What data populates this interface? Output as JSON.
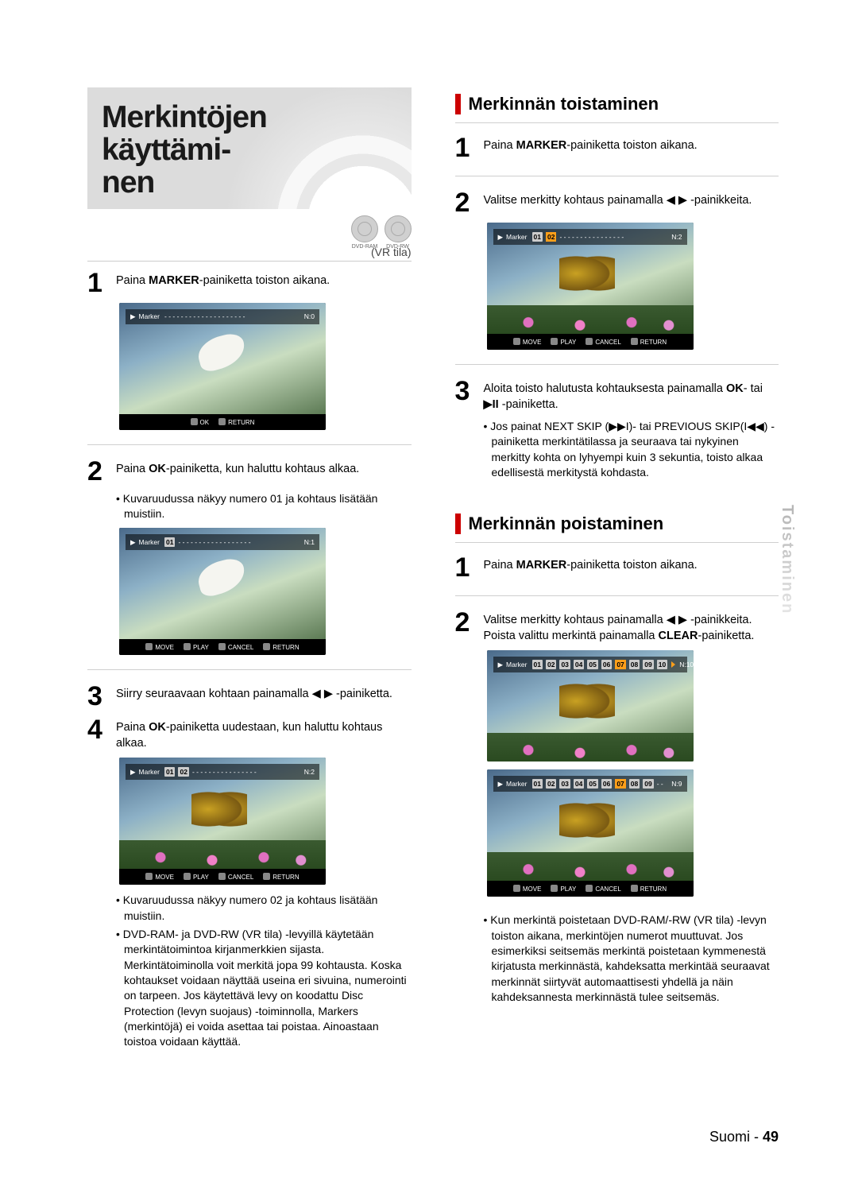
{
  "title": "Merkintöjen käyttämi-\nnen",
  "vr_mode": "(VR tila)",
  "side_tab": "Toistaminen",
  "footer_lang": "Suomi -",
  "footer_page": "49",
  "left": {
    "s1": "Paina MARKER-painiketta toiston aikana.",
    "s2": "Paina OK-painiketta, kun haluttu kohtaus alkaa.",
    "s2b": "Kuvaruudussa näkyy numero 01 ja kohtaus lisätään muistiin.",
    "s3": "Siirry seuraavaan kohtaan painamalla ◀ ▶ -painiketta.",
    "s4": "Paina OK-painiketta uudestaan, kun haluttu kohtaus alkaa.",
    "s4b1": "Kuvaruudussa näkyy numero 02 ja kohtaus lisätään muistiin.",
    "s4b2": "DVD-RAM- ja DVD-RW (VR tila) -levyillä käytetään merkintätoimintoa kirjanmerkkien sijasta. Merkintätoiminolla voit merkitä jopa 99 kohtausta. Koska kohtaukset voidaan näyttää useina eri sivuina, numerointi on tarpeen. Jos käytettävä levy on koodattu Disc Protection (levyn suojaus) -toiminnolla, Markers (merkintöjä) ei voida asettaa tai poistaa. Ainoastaan toistoa voidaan käyttää."
  },
  "right": {
    "play_head": "Merkinnän toistaminen",
    "p1": "Paina MARKER-painiketta toiston aikana.",
    "p2": "Valitse merkitty kohtaus painamalla ◀ ▶ -painikkeita.",
    "p3a": "Aloita toisto halutusta kohtauksesta painamalla OK- tai ▶II -painiketta.",
    "p3b": "Jos painat NEXT SKIP (▶▶I)- tai PREVIOUS SKIP(I◀◀) -painiketta merkintätilassa ja seuraava tai nykyinen merkitty kohta on lyhyempi kuin 3 sekuntia, toisto alkaa edellisestä merkitystä kohdasta.",
    "del_head": "Merkinnän poistaminen",
    "d1": "Paina MARKER-painiketta toiston aikana.",
    "d2": "Valitse merkitty kohtaus painamalla ◀ ▶ -painikkeita. Poista valittu merkintä painamalla CLEAR-painiketta.",
    "d_end": "Kun merkintä poistetaan DVD-RAM/-RW (VR tila) -levyn toiston aikana, merkintöjen numerot muuttuvat. Jos esimerkiksi seitsemäs merkintä poistetaan kymmenestä kirjatusta merkinnästä, kahdeksatta merkintää seuraavat merkinnät siirtyvät automaattisesti yhdellä ja näin kahdeksannesta merkinnästä tulee seitsemäs."
  },
  "osd": {
    "marker": "Marker",
    "ok": "OK",
    "return": "RETURN",
    "move": "MOVE",
    "play": "PLAY",
    "cancel": "CANCEL",
    "n0": "N:0",
    "n1": "N:1",
    "n2": "N:2",
    "n9": "N:9",
    "n10": "N:10"
  }
}
